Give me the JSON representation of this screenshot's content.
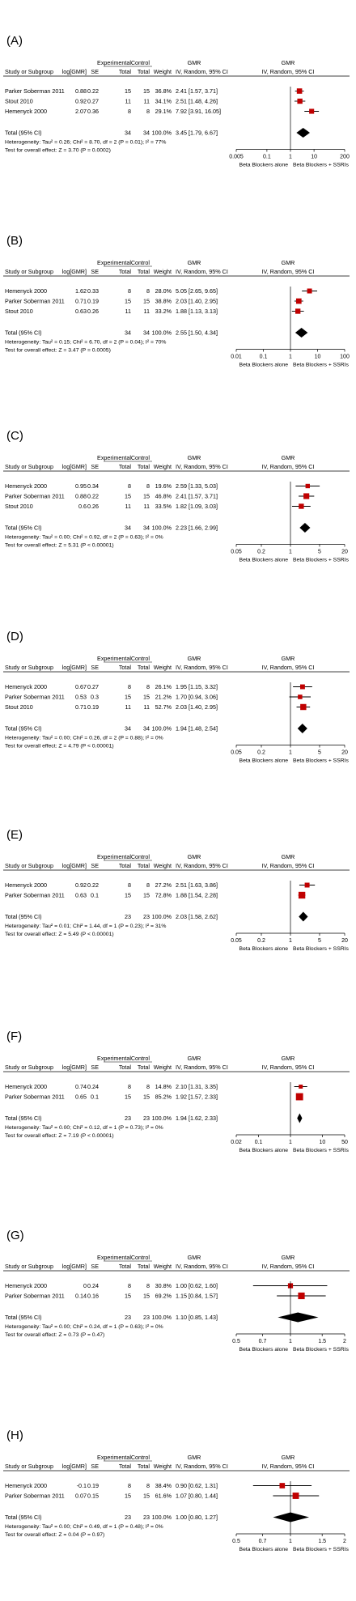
{
  "colors": {
    "study_marker": "#c00000",
    "diamond": "#000000",
    "ci_line": "#000000",
    "text": "#000000"
  },
  "chart_data": [
    {
      "type": "forest",
      "panel_label": "(A)",
      "title": "GMR",
      "headers": {
        "group_experimental": "Experimental",
        "group_control": "Control",
        "study": "Study or Subgroup",
        "loggmr": "log[GMR]",
        "se": "SE",
        "total_exp": "Total",
        "total_ctrl": "Total",
        "weight": "Weight",
        "ci": "IV, Random, 95% CI",
        "plot_title": "GMR",
        "plot_sub": "IV, Random, 95% CI"
      },
      "studies": [
        {
          "name": "Parker Soberman 2011",
          "loggmr": "0.88",
          "se": "0.22",
          "n_exp": "15",
          "n_ctrl": "15",
          "weight": "36.8%",
          "ci_text": "2.41 [1.57, 3.71]",
          "gmr": 2.41,
          "lo": 1.57,
          "hi": 3.71
        },
        {
          "name": "Stout 2010",
          "loggmr": "0.92",
          "se": "0.27",
          "n_exp": "11",
          "n_ctrl": "11",
          "weight": "34.1%",
          "ci_text": "2.51 [1.48, 4.26]",
          "gmr": 2.51,
          "lo": 1.48,
          "hi": 4.26
        },
        {
          "name": "Hemenyck 2000",
          "loggmr": "2.07",
          "se": "0.36",
          "n_exp": "8",
          "n_ctrl": "8",
          "weight": "29.1%",
          "ci_text": "7.92 [3.91, 16.05]",
          "gmr": 7.92,
          "lo": 3.91,
          "hi": 16.05
        }
      ],
      "total": {
        "label": "Total (95% CI)",
        "n_exp": "34",
        "n_ctrl": "34",
        "weight": "100.0%",
        "ci_text": "3.45 [1.79, 6.67]",
        "gmr": 3.45,
        "lo": 1.79,
        "hi": 6.67
      },
      "heterogeneity": "Heterogeneity: Tau² = 0.26; Chi² = 8.70, df = 2 (P = 0.01); I² = 77%",
      "overall_effect": "Test for overall effect: Z = 3.70 (P = 0.0002)",
      "axis": {
        "scale": "log",
        "ticks": [
          "0.005",
          "0.1",
          "1",
          "10",
          "200"
        ],
        "tick_values": [
          0.005,
          0.1,
          1,
          10,
          200
        ],
        "min": 0.005,
        "max": 200,
        "left_label": "Beta Blockers alone",
        "right_label": "Beta Blockers + SSRIs"
      }
    },
    {
      "type": "forest",
      "panel_label": "(B)",
      "title": "GMR",
      "headers": {
        "group_experimental": "Experimental",
        "group_control": "Control",
        "study": "Study or Subgroup",
        "loggmr": "log[GMR]",
        "se": "SE",
        "total_exp": "Total",
        "total_ctrl": "Total",
        "weight": "Weight",
        "ci": "IV, Random, 95% CI",
        "plot_title": "GMR",
        "plot_sub": "IV, Random, 95% CI"
      },
      "studies": [
        {
          "name": "Hemenyck 2000",
          "loggmr": "1.62",
          "se": "0.33",
          "n_exp": "8",
          "n_ctrl": "8",
          "weight": "28.0%",
          "ci_text": "5.05 [2.65, 9.65]",
          "gmr": 5.05,
          "lo": 2.65,
          "hi": 9.65
        },
        {
          "name": "Parker Soberman 2011",
          "loggmr": "0.71",
          "se": "0.19",
          "n_exp": "15",
          "n_ctrl": "15",
          "weight": "38.8%",
          "ci_text": "2.03 [1.40, 2.95]",
          "gmr": 2.03,
          "lo": 1.4,
          "hi": 2.95
        },
        {
          "name": "Stout 2010",
          "loggmr": "0.63",
          "se": "0.26",
          "n_exp": "11",
          "n_ctrl": "11",
          "weight": "33.2%",
          "ci_text": "1.88 [1.13, 3.13]",
          "gmr": 1.88,
          "lo": 1.13,
          "hi": 3.13
        }
      ],
      "total": {
        "label": "Total (95% CI)",
        "n_exp": "34",
        "n_ctrl": "34",
        "weight": "100.0%",
        "ci_text": "2.55 [1.50, 4.34]",
        "gmr": 2.55,
        "lo": 1.5,
        "hi": 4.34
      },
      "heterogeneity": "Heterogeneity: Tau² = 0.15; Chi² = 6.70, df = 2 (P = 0.04); I² = 70%",
      "overall_effect": "Test for overall effect: Z = 3.47 (P = 0.0005)",
      "axis": {
        "scale": "log",
        "ticks": [
          "0.01",
          "0.1",
          "1",
          "10",
          "100"
        ],
        "tick_values": [
          0.01,
          0.1,
          1,
          10,
          100
        ],
        "min": 0.01,
        "max": 100,
        "left_label": "Beta Blockers alone",
        "right_label": "Beta Blockers + SSRIs"
      }
    },
    {
      "type": "forest",
      "panel_label": "(C)",
      "title": "GMR",
      "headers": {
        "group_experimental": "Experimental",
        "group_control": "Control",
        "study": "Study or Subgroup",
        "loggmr": "log[GMR]",
        "se": "SE",
        "total_exp": "Total",
        "total_ctrl": "Total",
        "weight": "Weight",
        "ci": "IV, Random, 95% CI",
        "plot_title": "GMR",
        "plot_sub": "IV, Random, 95% CI"
      },
      "studies": [
        {
          "name": "Hemenyck 2000",
          "loggmr": "0.95",
          "se": "0.34",
          "n_exp": "8",
          "n_ctrl": "8",
          "weight": "19.6%",
          "ci_text": "2.59 [1.33, 5.03]",
          "gmr": 2.59,
          "lo": 1.33,
          "hi": 5.03
        },
        {
          "name": "Parker Soberman 2011",
          "loggmr": "0.88",
          "se": "0.22",
          "n_exp": "15",
          "n_ctrl": "15",
          "weight": "46.8%",
          "ci_text": "2.41 [1.57, 3.71]",
          "gmr": 2.41,
          "lo": 1.57,
          "hi": 3.71
        },
        {
          "name": "Stout 2010",
          "loggmr": "0.6",
          "se": "0.26",
          "n_exp": "11",
          "n_ctrl": "11",
          "weight": "33.5%",
          "ci_text": "1.82 [1.09, 3.03]",
          "gmr": 1.82,
          "lo": 1.09,
          "hi": 3.03
        }
      ],
      "total": {
        "label": "Total (95% CI)",
        "n_exp": "34",
        "n_ctrl": "34",
        "weight": "100.0%",
        "ci_text": "2.23 [1.66, 2.99]",
        "gmr": 2.23,
        "lo": 1.66,
        "hi": 2.99
      },
      "heterogeneity": "Heterogeneity: Tau² = 0.00; Chi² = 0.92, df = 2 (P = 0.63); I² = 0%",
      "overall_effect": "Test for overall effect: Z = 5.31 (P < 0.00001)",
      "axis": {
        "scale": "log",
        "ticks": [
          "0.05",
          "0.2",
          "1",
          "5",
          "20"
        ],
        "tick_values": [
          0.05,
          0.2,
          1,
          5,
          20
        ],
        "min": 0.05,
        "max": 20,
        "left_label": "Beta Blockers alone",
        "right_label": "Beta Blockers + SSRIs"
      }
    },
    {
      "type": "forest",
      "panel_label": "(D)",
      "title": "GMR",
      "headers": {
        "group_experimental": "Experimental",
        "group_control": "Control",
        "study": "Study or Subgroup",
        "loggmr": "log[GMR]",
        "se": "SE",
        "total_exp": "Total",
        "total_ctrl": "Total",
        "weight": "Weight",
        "ci": "IV, Random, 95% CI",
        "plot_title": "GMR",
        "plot_sub": "IV, Random, 95% CI"
      },
      "studies": [
        {
          "name": "Hemenyck 2000",
          "loggmr": "0.67",
          "se": "0.27",
          "n_exp": "8",
          "n_ctrl": "8",
          "weight": "26.1%",
          "ci_text": "1.95 [1.15, 3.32]",
          "gmr": 1.95,
          "lo": 1.15,
          "hi": 3.32
        },
        {
          "name": "Parker Soberman 2011",
          "loggmr": "0.53",
          "se": "0.3",
          "n_exp": "15",
          "n_ctrl": "15",
          "weight": "21.2%",
          "ci_text": "1.70 [0.94, 3.06]",
          "gmr": 1.7,
          "lo": 0.94,
          "hi": 3.06
        },
        {
          "name": "Stout 2010",
          "loggmr": "0.71",
          "se": "0.19",
          "n_exp": "11",
          "n_ctrl": "11",
          "weight": "52.7%",
          "ci_text": "2.03 [1.40, 2.95]",
          "gmr": 2.03,
          "lo": 1.4,
          "hi": 2.95
        }
      ],
      "total": {
        "label": "Total (95% CI)",
        "n_exp": "34",
        "n_ctrl": "34",
        "weight": "100.0%",
        "ci_text": "1.94 [1.48, 2.54]",
        "gmr": 1.94,
        "lo": 1.48,
        "hi": 2.54
      },
      "heterogeneity": "Heterogeneity: Tau² = 0.00; Chi² = 0.26, df = 2 (P = 0.88); I² = 0%",
      "overall_effect": "Test for overall effect: Z = 4.79 (P < 0.00001)",
      "axis": {
        "scale": "log",
        "ticks": [
          "0.05",
          "0.2",
          "1",
          "5",
          "20"
        ],
        "tick_values": [
          0.05,
          0.2,
          1,
          5,
          20
        ],
        "min": 0.05,
        "max": 20,
        "left_label": "Beta Blockers alone",
        "right_label": "Beta Blockers + SSRIs"
      }
    },
    {
      "type": "forest",
      "panel_label": "(E)",
      "title": "GMR",
      "headers": {
        "group_experimental": "Experimental",
        "group_control": "Control",
        "study": "Study or Subgroup",
        "loggmr": "log[GMR]",
        "se": "SE",
        "total_exp": "Total",
        "total_ctrl": "Total",
        "weight": "Weight",
        "ci": "IV, Random, 95% CI",
        "plot_title": "GMR",
        "plot_sub": "IV, Random, 95% CI"
      },
      "studies": [
        {
          "name": "Hemenyck 2000",
          "loggmr": "0.92",
          "se": "0.22",
          "n_exp": "8",
          "n_ctrl": "8",
          "weight": "27.2%",
          "ci_text": "2.51 [1.63, 3.86]",
          "gmr": 2.51,
          "lo": 1.63,
          "hi": 3.86
        },
        {
          "name": "Parker Soberman 2011",
          "loggmr": "0.63",
          "se": "0.1",
          "n_exp": "15",
          "n_ctrl": "15",
          "weight": "72.8%",
          "ci_text": "1.88 [1.54, 2.28]",
          "gmr": 1.88,
          "lo": 1.54,
          "hi": 2.28
        }
      ],
      "total": {
        "label": "Total (95% CI)",
        "n_exp": "23",
        "n_ctrl": "23",
        "weight": "100.0%",
        "ci_text": "2.03 [1.58, 2.62]",
        "gmr": 2.03,
        "lo": 1.58,
        "hi": 2.62
      },
      "heterogeneity": "Heterogeneity: Tau² = 0.01; Chi² = 1.44, df = 1 (P = 0.23); I² = 31%",
      "overall_effect": "Test for overall effect: Z = 5.49 (P < 0.00001)",
      "axis": {
        "scale": "log",
        "ticks": [
          "0.05",
          "0.2",
          "1",
          "5",
          "20"
        ],
        "tick_values": [
          0.05,
          0.2,
          1,
          5,
          20
        ],
        "min": 0.05,
        "max": 20,
        "left_label": "Beta Blockers alone",
        "right_label": "Beta Blockers + SSRIs"
      }
    },
    {
      "type": "forest",
      "panel_label": "(F)",
      "title": "GMR",
      "headers": {
        "group_experimental": "Experimental",
        "group_control": "Control",
        "study": "Study or Subgroup",
        "loggmr": "log[GMR]",
        "se": "SE",
        "total_exp": "Total",
        "total_ctrl": "Total",
        "weight": "Weight",
        "ci": "IV, Random, 95% CI",
        "plot_title": "GMR",
        "plot_sub": "IV, Random, 95% CI"
      },
      "studies": [
        {
          "name": "Hemenyck 2000",
          "loggmr": "0.74",
          "se": "0.24",
          "n_exp": "8",
          "n_ctrl": "8",
          "weight": "14.8%",
          "ci_text": "2.10 [1.31, 3.35]",
          "gmr": 2.1,
          "lo": 1.31,
          "hi": 3.35
        },
        {
          "name": "Parker Soberman 2011",
          "loggmr": "0.65",
          "se": "0.1",
          "n_exp": "15",
          "n_ctrl": "15",
          "weight": "85.2%",
          "ci_text": "1.92 [1.57, 2.33]",
          "gmr": 1.92,
          "lo": 1.57,
          "hi": 2.33
        }
      ],
      "total": {
        "label": "Total (95% CI)",
        "n_exp": "23",
        "n_ctrl": "23",
        "weight": "100.0%",
        "ci_text": "1.94 [1.62, 2.33]",
        "gmr": 1.94,
        "lo": 1.62,
        "hi": 2.33
      },
      "heterogeneity": "Heterogeneity: Tau² = 0.00; Chi² = 0.12, df = 1 (P = 0.73); I² = 0%",
      "overall_effect": "Test for overall effect: Z = 7.19 (P < 0.00001)",
      "axis": {
        "scale": "log",
        "ticks": [
          "0.02",
          "0.1",
          "1",
          "10",
          "50"
        ],
        "tick_values": [
          0.02,
          0.1,
          1,
          10,
          50
        ],
        "min": 0.02,
        "max": 50,
        "left_label": "Beta Blockers alone",
        "right_label": "Beta Blockers + SSRIs"
      }
    },
    {
      "type": "forest",
      "panel_label": "(G)",
      "title": "GMR",
      "headers": {
        "group_experimental": "Experimental",
        "group_control": "Control",
        "study": "Study or Subgroup",
        "loggmr": "log[GMR]",
        "se": "SE",
        "total_exp": "Total",
        "total_ctrl": "Total",
        "weight": "Weight",
        "ci": "IV, Random, 95% CI",
        "plot_title": "GMR",
        "plot_sub": "IV, Random, 95% CI"
      },
      "studies": [
        {
          "name": "Hemenyck 2000",
          "loggmr": "0",
          "se": "0.24",
          "n_exp": "8",
          "n_ctrl": "8",
          "weight": "30.8%",
          "ci_text": "1.00 [0.62, 1.60]",
          "gmr": 1.0,
          "lo": 0.62,
          "hi": 1.6
        },
        {
          "name": "Parker Soberman 2011",
          "loggmr": "0.14",
          "se": "0.16",
          "n_exp": "15",
          "n_ctrl": "15",
          "weight": "69.2%",
          "ci_text": "1.15 [0.84, 1.57]",
          "gmr": 1.15,
          "lo": 0.84,
          "hi": 1.57
        }
      ],
      "total": {
        "label": "Total (95% CI)",
        "n_exp": "23",
        "n_ctrl": "23",
        "weight": "100.0%",
        "ci_text": "1.10 [0.85, 1.43]",
        "gmr": 1.1,
        "lo": 0.85,
        "hi": 1.43
      },
      "heterogeneity": "Heterogeneity: Tau² = 0.00; Chi² = 0.24, df = 1 (P = 0.63); I² = 0%",
      "overall_effect": "Test for overall effect: Z = 0.73 (P = 0.47)",
      "axis": {
        "scale": "log",
        "ticks": [
          "0.5",
          "0.7",
          "1",
          "1.5",
          "2"
        ],
        "tick_values": [
          0.5,
          0.7,
          1,
          1.5,
          2
        ],
        "min": 0.5,
        "max": 2,
        "left_label": "Beta Blockers alone",
        "right_label": "Beta Blockers + SSRIs"
      }
    },
    {
      "type": "forest",
      "panel_label": "(H)",
      "title": "GMR",
      "headers": {
        "group_experimental": "Experimental",
        "group_control": "Control",
        "study": "Study or Subgroup",
        "loggmr": "log[GMR]",
        "se": "SE",
        "total_exp": "Total",
        "total_ctrl": "Total",
        "weight": "Weight",
        "ci": "IV, Random, 95% CI",
        "plot_title": "GMR",
        "plot_sub": "IV, Random, 95% CI"
      },
      "studies": [
        {
          "name": "Hemenyck 2000",
          "loggmr": "-0.1",
          "se": "0.19",
          "n_exp": "8",
          "n_ctrl": "8",
          "weight": "38.4%",
          "ci_text": "0.90 [0.62, 1.31]",
          "gmr": 0.9,
          "lo": 0.62,
          "hi": 1.31
        },
        {
          "name": "Parker Soberman 2011",
          "loggmr": "0.07",
          "se": "0.15",
          "n_exp": "15",
          "n_ctrl": "15",
          "weight": "61.6%",
          "ci_text": "1.07 [0.80, 1.44]",
          "gmr": 1.07,
          "lo": 0.8,
          "hi": 1.44
        }
      ],
      "total": {
        "label": "Total (95% CI)",
        "n_exp": "23",
        "n_ctrl": "23",
        "weight": "100.0%",
        "ci_text": "1.00 [0.80, 1.27]",
        "gmr": 1.0,
        "lo": 0.8,
        "hi": 1.27
      },
      "heterogeneity": "Heterogeneity: Tau² = 0.00; Chi² = 0.49, df = 1 (P = 0.48); I² = 0%",
      "overall_effect": "Test for overall effect: Z = 0.04 (P = 0.97)",
      "axis": {
        "scale": "log",
        "ticks": [
          "0.5",
          "0.7",
          "1",
          "1.5",
          "2"
        ],
        "tick_values": [
          0.5,
          0.7,
          1,
          1.5,
          2
        ],
        "min": 0.5,
        "max": 2,
        "left_label": "Beta Blockers alone",
        "right_label": "Beta Blockers + SSRIs"
      }
    }
  ]
}
